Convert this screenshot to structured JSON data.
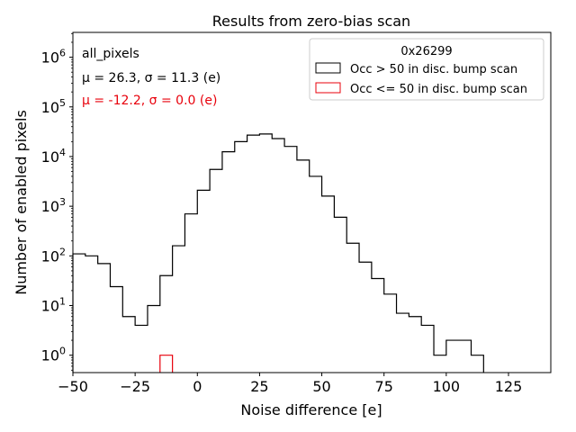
{
  "chart_data": {
    "type": "histogram",
    "title": "Results from zero-bias scan",
    "xlabel": "Noise difference [e]",
    "ylabel": "Number of enabled pixels",
    "xlim": [
      -50,
      142
    ],
    "ylim_log10": [
      -0.35,
      6.5
    ],
    "yscale": "log",
    "x_ticks": [
      -50,
      -25,
      0,
      25,
      50,
      75,
      100,
      125
    ],
    "x_tick_labels": [
      "−50",
      "−25",
      "0",
      "25",
      "50",
      "75",
      "100",
      "125"
    ],
    "y_ticks": [
      1,
      10,
      100,
      1000,
      10000,
      100000,
      1000000
    ],
    "y_tick_bases": [
      "10",
      "10",
      "10",
      "10",
      "10",
      "10",
      "10"
    ],
    "y_tick_exponents": [
      "0",
      "1",
      "2",
      "3",
      "4",
      "5",
      "6"
    ],
    "legend_position": "top-right",
    "legend_title": "0x26299",
    "series": [
      {
        "name": "Occ > 50 in disc. bump scan",
        "color": "#000000",
        "bin_width": 5,
        "bin_starts": [
          -50,
          -45,
          -40,
          -35,
          -30,
          -25,
          -20,
          -15,
          -10,
          -5,
          0,
          5,
          10,
          15,
          20,
          25,
          30,
          35,
          40,
          45,
          50,
          55,
          60,
          65,
          70,
          75,
          80,
          85,
          90,
          95,
          100,
          105,
          110
        ],
        "values": [
          110,
          100,
          70,
          24,
          6,
          4,
          10,
          40,
          160,
          700,
          2100,
          5500,
          12500,
          20000,
          27000,
          28500,
          23000,
          16000,
          8500,
          4000,
          1600,
          600,
          180,
          75,
          35,
          17,
          7,
          6,
          4,
          1,
          2,
          2,
          1
        ]
      },
      {
        "name": "Occ <= 50 in disc. bump scan",
        "color": "#e8000b",
        "bin_width": 5,
        "bin_starts": [
          -15
        ],
        "values": [
          1
        ]
      }
    ],
    "annotations": [
      {
        "text": "all_pixels",
        "color": "#000000"
      },
      {
        "text": "μ = 26.3, σ = 11.3 (e)",
        "color": "#000000"
      },
      {
        "text": "μ = -12.2, σ = 0.0 (e)",
        "color": "#e8000b"
      }
    ]
  }
}
